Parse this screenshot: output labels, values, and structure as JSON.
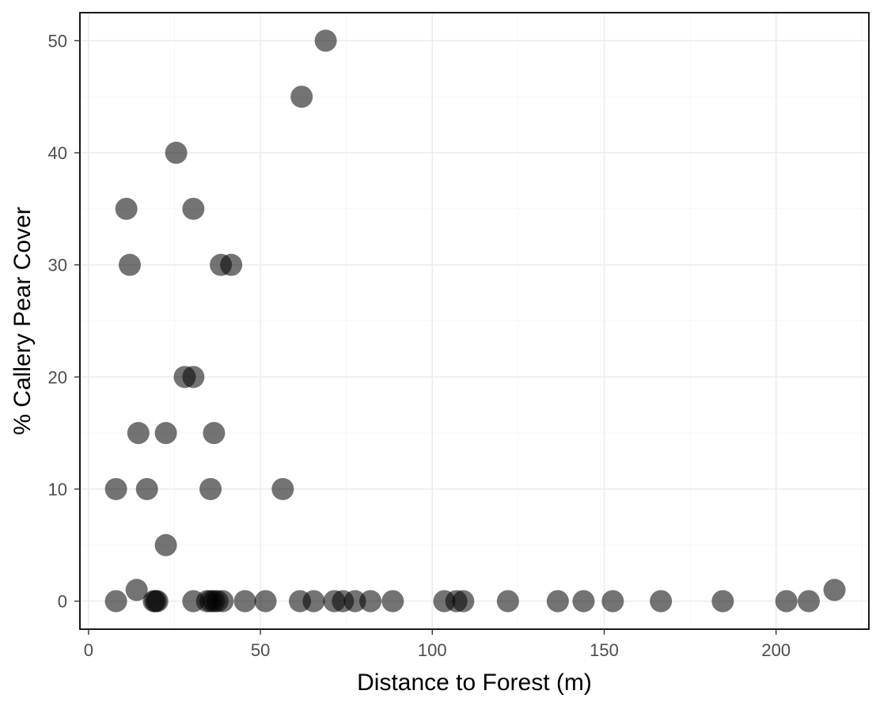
{
  "chart_data": {
    "type": "scatter",
    "title": "",
    "xlabel": "Distance to Forest (m)",
    "ylabel": "% Callery Pear Cover",
    "xlim": [
      -2.5,
      227
    ],
    "ylim": [
      -2.5,
      52.5
    ],
    "x_ticks": [
      0,
      50,
      100,
      150,
      200
    ],
    "y_ticks": [
      0,
      10,
      20,
      30,
      40,
      50
    ],
    "x_tick_labels": [
      "0",
      "50",
      "100",
      "150",
      "200"
    ],
    "y_tick_labels": [
      "0",
      "10",
      "20",
      "30",
      "40",
      "50"
    ],
    "grid": true,
    "legend": "none",
    "point_color": "#000000",
    "point_opacity": 0.55,
    "series": [
      {
        "x": [
          69,
          62,
          25.5,
          11,
          30.5,
          12,
          38.5,
          41.5,
          28,
          30.5,
          14.5,
          22.5,
          36.5,
          8,
          17,
          35.5,
          56.5,
          22.5,
          14,
          8,
          19,
          19.5,
          20,
          30.5,
          34.5,
          35.5,
          36.5,
          37.5,
          39,
          45.5,
          51.5,
          61.5,
          65.5,
          71.5,
          74,
          77.5,
          82,
          88.5,
          103.5,
          107,
          109,
          122,
          136.5,
          144,
          152.5,
          166.5,
          184.5,
          203,
          209.5,
          217
        ],
        "y": [
          50,
          45,
          40,
          35,
          35,
          30,
          30,
          30,
          20,
          20,
          15,
          15,
          15,
          10,
          10,
          10,
          10,
          5,
          1,
          0,
          0,
          0,
          0,
          0,
          0,
          0,
          0,
          0,
          0,
          0,
          0,
          0,
          0,
          0,
          0,
          0,
          0,
          0,
          0,
          0,
          0,
          0,
          0,
          0,
          0,
          0,
          0,
          0,
          0,
          1
        ]
      }
    ]
  }
}
